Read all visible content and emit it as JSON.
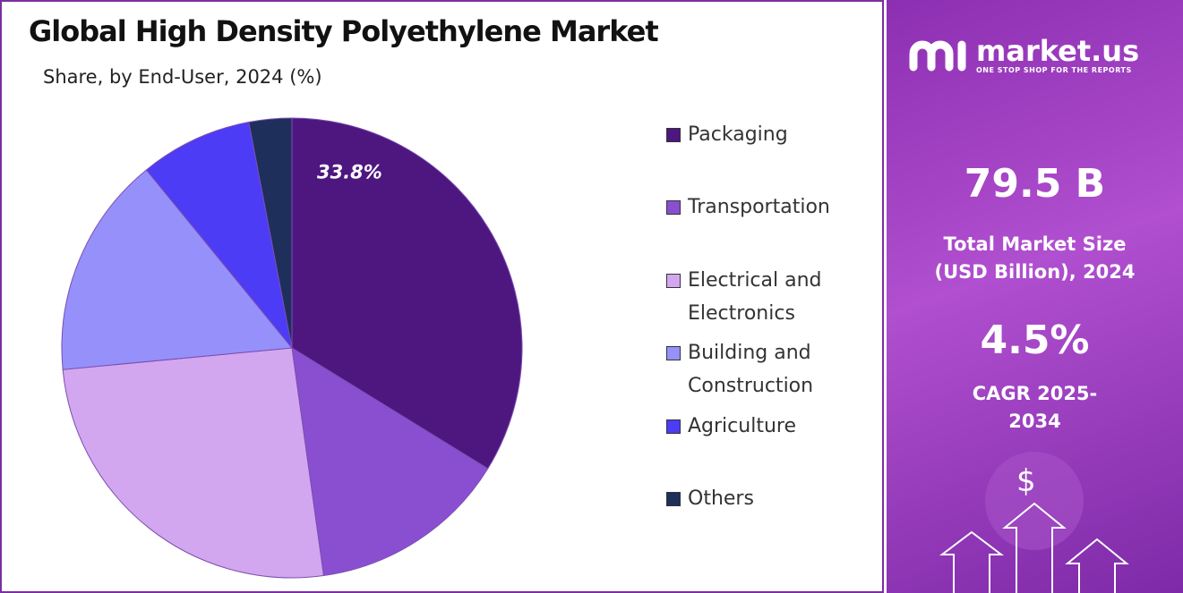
{
  "chart_data": {
    "type": "pie",
    "title": "Global High Density Polyethylene Market",
    "subtitle": "Share, by End-User, 2024 (%)",
    "categories": [
      "Packaging",
      "Transportation",
      "Electrical and Electronics",
      "Building and Construction",
      "Agriculture",
      "Others"
    ],
    "values": [
      33.8,
      14.0,
      25.7,
      15.6,
      7.9,
      3.0
    ],
    "value_labels": [
      "33.8%",
      null,
      null,
      null,
      null,
      null
    ],
    "colors": [
      "#4e1780",
      "#8a4fd0",
      "#d3a6f0",
      "#9690fb",
      "#4c3cf5",
      "#1e2f5c"
    ]
  },
  "sidebar": {
    "brand": "market.us",
    "tagline": "ONE STOP SHOP FOR THE REPORTS",
    "market_size": "79.5 B",
    "market_size_label": "Total Market Size (USD Billion), 2024",
    "cagr": "4.5%",
    "cagr_label": "CAGR 2025-2034",
    "currency_icon": "$"
  }
}
